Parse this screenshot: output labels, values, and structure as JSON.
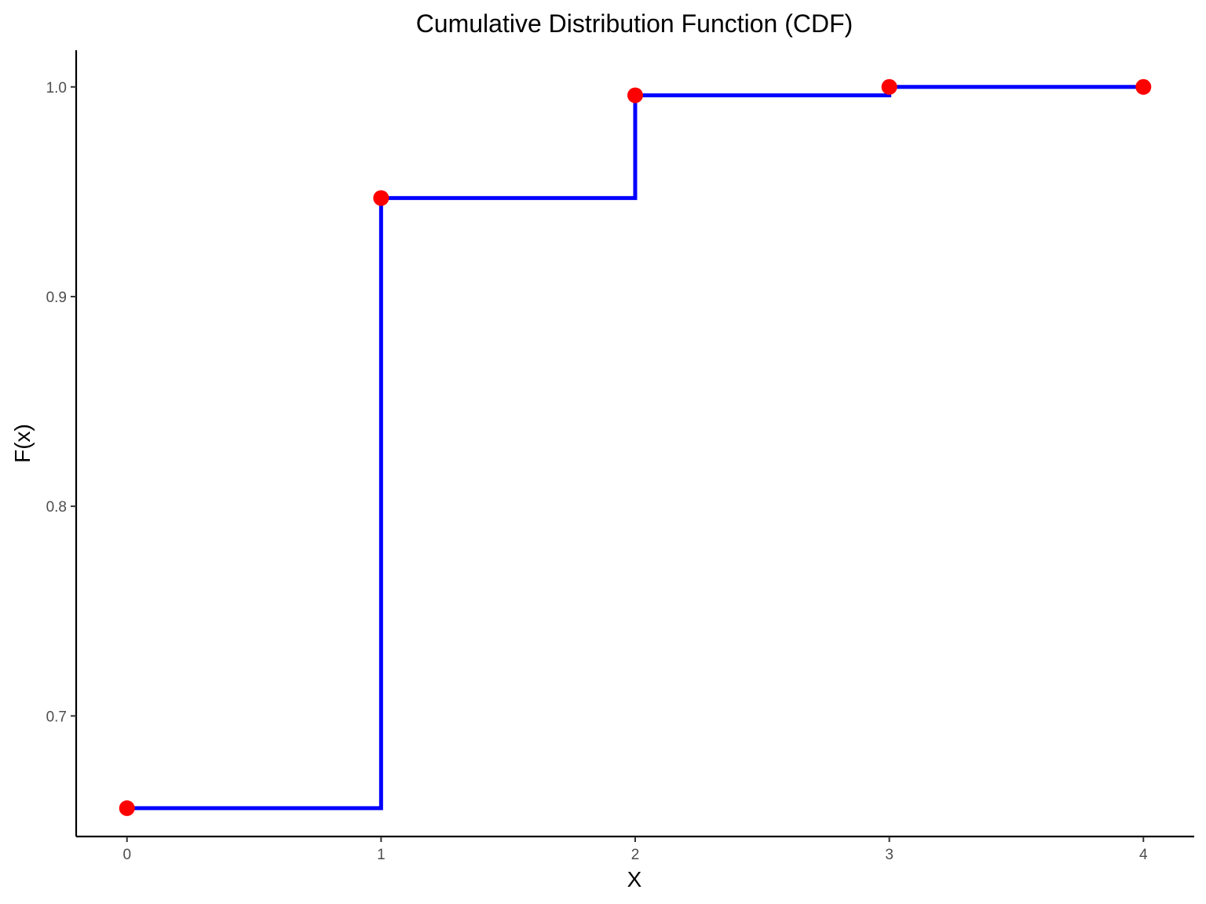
{
  "chart_data": {
    "type": "line",
    "title": "Cumulative Distribution Function (CDF)",
    "xlabel": "X",
    "ylabel": "F(x)",
    "x": [
      0,
      1,
      2,
      3,
      4
    ],
    "series": [
      {
        "values": [
          0.656,
          0.947,
          0.996,
          1.0,
          1.0
        ],
        "color": "#0000ff",
        "point_color": "#ff0000",
        "style": "step"
      }
    ],
    "xlim": [
      -0.2,
      4.2
    ],
    "ylim": [
      0.6425,
      1.0175
    ],
    "xticks": [
      0,
      1,
      2,
      3,
      4
    ],
    "xtick_labels": [
      "0",
      "1",
      "2",
      "3",
      "4"
    ],
    "yticks": [
      0.7,
      0.8,
      0.9,
      1.0
    ],
    "ytick_labels": [
      "0.7",
      "0.8",
      "0.9",
      "1.0"
    ],
    "grid": false,
    "legend": "none"
  }
}
